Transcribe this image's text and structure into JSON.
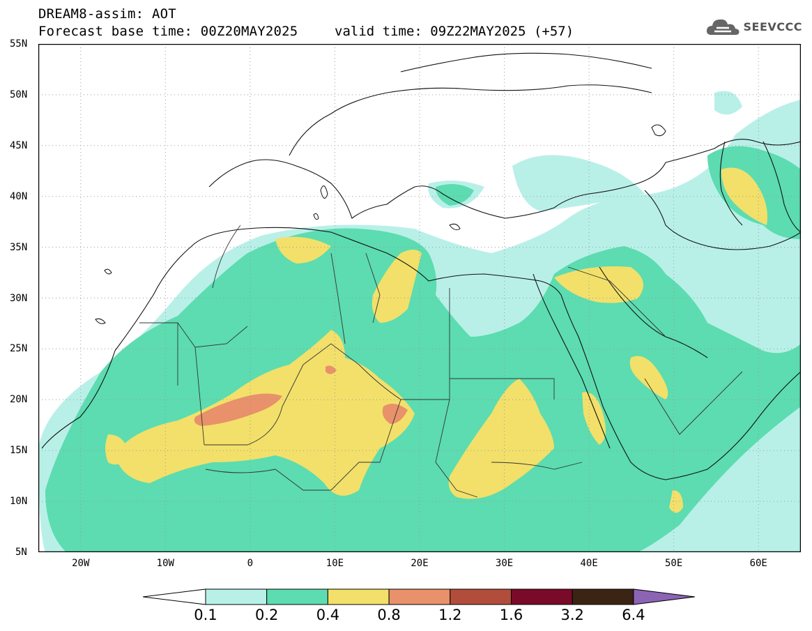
{
  "header": {
    "line1": "DREAM8-assim: AOT",
    "line2_base": "Forecast base time: 00Z20MAY2025",
    "line2_valid": "valid time: 09Z22MAY2025 (+57)"
  },
  "logo": {
    "text": "SEEVCCC",
    "icon": "cloud-icon"
  },
  "map": {
    "lon_range": [
      -25,
      65
    ],
    "lat_range": [
      5,
      55
    ],
    "lat_labels": [
      "5N",
      "10N",
      "15N",
      "20N",
      "25N",
      "30N",
      "35N",
      "40N",
      "45N",
      "50N",
      "55N"
    ],
    "lon_labels": [
      "20W",
      "10W",
      "0",
      "10E",
      "20E",
      "30E",
      "40E",
      "50E",
      "60E"
    ],
    "grid": "dotted"
  },
  "colorbar": {
    "labels": [
      "0.1",
      "0.2",
      "0.4",
      "0.8",
      "1.2",
      "1.6",
      "3.2",
      "6.4"
    ],
    "colors": [
      "#b8f0e8",
      "#5cdcb0",
      "#f2e06a",
      "#e8916a",
      "#b24d3c",
      "#7a0a2a",
      "#3c2414",
      "#8c64b4"
    ]
  }
}
